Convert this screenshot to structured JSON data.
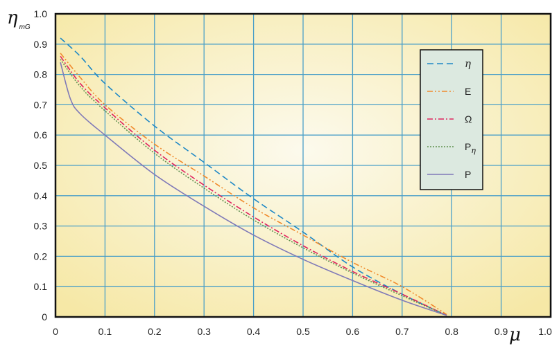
{
  "chart_data": {
    "type": "line",
    "title": "",
    "ylabel": {
      "symbol": "η",
      "subscript": "mG"
    },
    "xlabel": {
      "symbol": "μ"
    },
    "xlim": [
      0,
      1.0
    ],
    "ylim": [
      0,
      1.0
    ],
    "x_ticks": [
      "0",
      "0.1",
      "0.2",
      "0.3",
      "0.4",
      "0.5",
      "0.6",
      "0.7",
      "0.8",
      "0.9",
      "1.0"
    ],
    "y_ticks": [
      "0",
      "0.1",
      "0.2",
      "0.3",
      "0.4",
      "0.5",
      "0.6",
      "0.7",
      "0.8",
      "0.9",
      "1.0"
    ],
    "grid": true,
    "legend_position": "top-right",
    "colors": {
      "grid": "#4a9fc8",
      "frame": "#111111",
      "background_center": "#fbf8e6",
      "background_edge": "#f6e7a2",
      "legend_bg": "#dce9e0"
    },
    "series": [
      {
        "name": "η",
        "legend_main": "η",
        "legend_sub": "",
        "color": "#1e88c6",
        "dash": "9,5",
        "points": [
          [
            0.01,
            0.92
          ],
          [
            0.05,
            0.86
          ],
          [
            0.1,
            0.77
          ],
          [
            0.2,
            0.63
          ],
          [
            0.3,
            0.51
          ],
          [
            0.4,
            0.39
          ],
          [
            0.5,
            0.28
          ],
          [
            0.6,
            0.165
          ],
          [
            0.7,
            0.075
          ],
          [
            0.79,
            0.005
          ]
        ]
      },
      {
        "name": "E",
        "legend_main": "E",
        "legend_sub": "",
        "color": "#f08a2c",
        "dash": "8,3,2,3,2,3",
        "points": [
          [
            0.01,
            0.87
          ],
          [
            0.05,
            0.79
          ],
          [
            0.1,
            0.7
          ],
          [
            0.2,
            0.57
          ],
          [
            0.3,
            0.465
          ],
          [
            0.4,
            0.36
          ],
          [
            0.5,
            0.27
          ],
          [
            0.6,
            0.18
          ],
          [
            0.7,
            0.1
          ],
          [
            0.79,
            0.008
          ]
        ]
      },
      {
        "name": "Ω",
        "legend_main": "Ω",
        "legend_sub": "",
        "color": "#e0245e",
        "dash": "8,3,2,3",
        "points": [
          [
            0.01,
            0.86
          ],
          [
            0.05,
            0.77
          ],
          [
            0.1,
            0.69
          ],
          [
            0.2,
            0.55
          ],
          [
            0.3,
            0.435
          ],
          [
            0.4,
            0.33
          ],
          [
            0.5,
            0.235
          ],
          [
            0.6,
            0.15
          ],
          [
            0.7,
            0.075
          ],
          [
            0.79,
            0.005
          ]
        ]
      },
      {
        "name": "Pη",
        "legend_main": "P",
        "legend_sub": "η",
        "color": "#5f8f4e",
        "dash": "2,2",
        "points": [
          [
            0.01,
            0.85
          ],
          [
            0.05,
            0.76
          ],
          [
            0.1,
            0.68
          ],
          [
            0.2,
            0.54
          ],
          [
            0.3,
            0.425
          ],
          [
            0.4,
            0.32
          ],
          [
            0.5,
            0.228
          ],
          [
            0.6,
            0.145
          ],
          [
            0.7,
            0.07
          ],
          [
            0.79,
            0.005
          ]
        ]
      },
      {
        "name": "P",
        "legend_main": "P",
        "legend_sub": "",
        "color": "#7f79b8",
        "dash": "",
        "points": [
          [
            0.01,
            0.84
          ],
          [
            0.03,
            0.72
          ],
          [
            0.05,
            0.67
          ],
          [
            0.1,
            0.6
          ],
          [
            0.2,
            0.47
          ],
          [
            0.3,
            0.365
          ],
          [
            0.4,
            0.27
          ],
          [
            0.5,
            0.19
          ],
          [
            0.6,
            0.12
          ],
          [
            0.7,
            0.055
          ],
          [
            0.79,
            0.005
          ]
        ]
      }
    ]
  }
}
